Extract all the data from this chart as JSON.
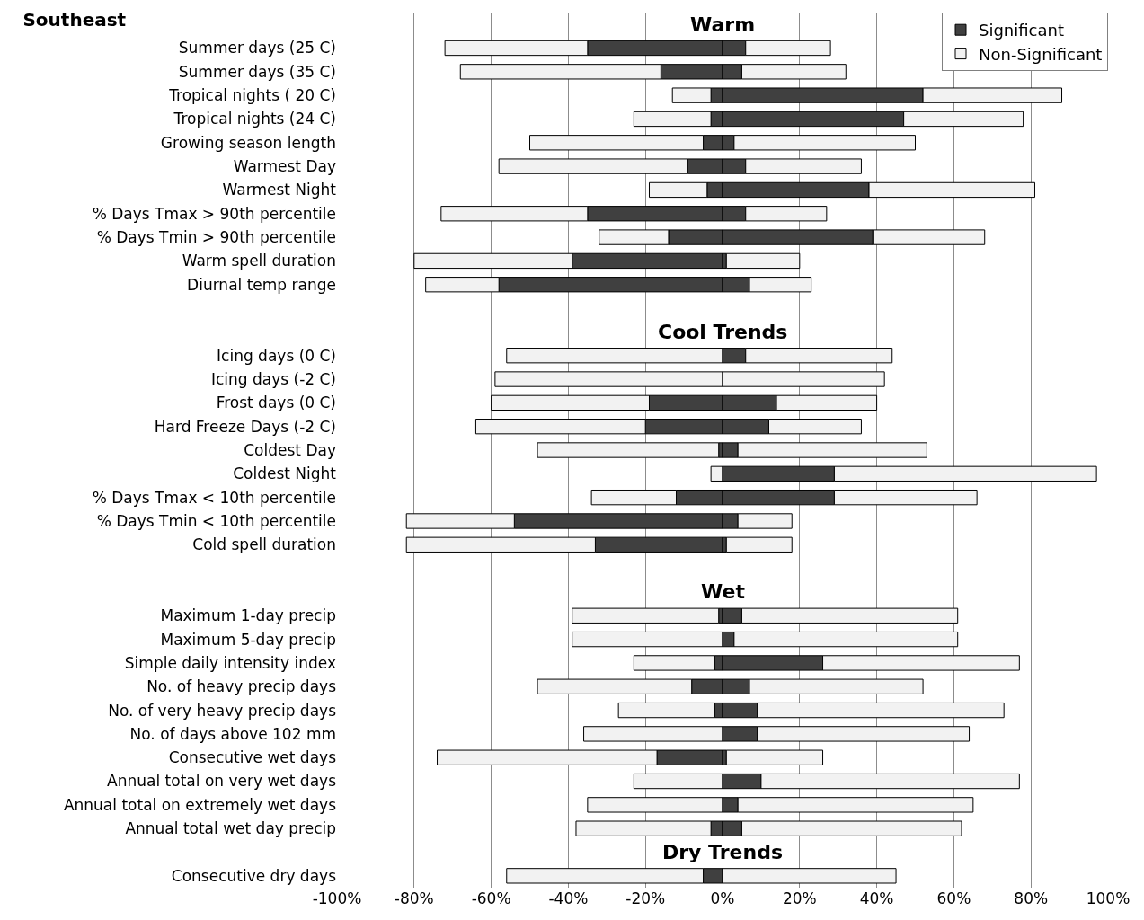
{
  "chart_data": {
    "type": "bar",
    "orientation": "horizontal",
    "stacked": true,
    "title": "Southeast",
    "categories": [
      null,
      "Summer days (25 C)",
      "Summer days (35 C)",
      "Tropical nights ( 20 C)",
      "Tropical nights (24 C)",
      "Growing season length",
      "Warmest Day",
      "Warmest Night",
      "% Days Tmax > 90th percentile",
      "% Days Tmin > 90th percentile",
      "Warm spell duration",
      "Diurnal temp range",
      null,
      null,
      "Icing days (0 C)",
      "Icing days (-2 C)",
      "Frost days (0 C)",
      "Hard Freeze Days (-2 C)",
      "Coldest Day",
      "Coldest Night",
      "% Days Tmax < 10th percentile",
      "% Days Tmin < 10th percentile",
      "Cold spell duration",
      null,
      null,
      "Maximum 1-day precip",
      "Maximum 5-day precip",
      "Simple daily intensity index",
      "No. of heavy precip days",
      "No. of very heavy precip days",
      "No. of days above 102 mm",
      "Consecutive wet days",
      "Annual total on very wet days",
      "Annual total on extremely wet days",
      "Annual total wet day precip",
      null,
      "Consecutive dry days"
    ],
    "series": [
      {
        "name": "Significant",
        "color": "#404040",
        "values": [
          null,
          -35,
          -16,
          -3,
          -3,
          -5,
          -9,
          -4,
          -35,
          -14,
          -39,
          -58,
          null,
          null,
          0,
          0,
          -19,
          -20,
          -1,
          0,
          -12,
          -54,
          -33,
          null,
          null,
          -1,
          0,
          -2,
          -8,
          -2,
          0,
          -17,
          0,
          0,
          -3,
          null,
          -5
        ]
      },
      {
        "name": "Non-Significant",
        "color": "#f2f2f2",
        "values": [
          null,
          -37,
          -52,
          -10,
          -20,
          -45,
          -49,
          -15,
          -38,
          -18,
          -41,
          -19,
          null,
          null,
          -56,
          -59,
          -41,
          -44,
          -47,
          -3,
          -22,
          -28,
          -49,
          null,
          null,
          -38,
          -39,
          -21,
          -40,
          -25,
          -36,
          -57,
          -23,
          -35,
          -35,
          null,
          -51
        ]
      },
      {
        "color": "#404040",
        "values": [
          null,
          6,
          5,
          52,
          47,
          3,
          6,
          38,
          6,
          39,
          1,
          7,
          null,
          null,
          6,
          0,
          14,
          12,
          4,
          29,
          29,
          4,
          1,
          null,
          null,
          5,
          3,
          26,
          7,
          9,
          9,
          1,
          10,
          4,
          5,
          null,
          0
        ]
      },
      {
        "color": "#f2f2f2",
        "values": [
          null,
          22,
          27,
          36,
          31,
          47,
          30,
          43,
          21,
          29,
          19,
          16,
          null,
          null,
          38,
          42,
          26,
          24,
          49,
          68,
          37,
          14,
          17,
          null,
          null,
          56,
          58,
          51,
          45,
          64,
          55,
          25,
          67,
          61,
          57,
          null,
          45
        ]
      }
    ],
    "xlim": [
      -100,
      100
    ],
    "xticks": [
      {
        "value": -100,
        "label": "-100%"
      },
      {
        "value": -80,
        "label": "-80%"
      },
      {
        "value": -60,
        "label": "-60%"
      },
      {
        "value": -40,
        "label": "-40%"
      },
      {
        "value": -20,
        "label": "-20%"
      },
      {
        "value": 0,
        "label": "0%"
      },
      {
        "value": 20,
        "label": "20%"
      },
      {
        "value": 40,
        "label": "40%"
      },
      {
        "value": 60,
        "label": "60%"
      },
      {
        "value": 80,
        "label": "80%"
      },
      {
        "value": 100,
        "label": "100%"
      }
    ],
    "annotations": [
      "Warm",
      "Cool Trends",
      "Wet",
      "Dry Trends"
    ],
    "grid": "x",
    "legend": "top right"
  }
}
